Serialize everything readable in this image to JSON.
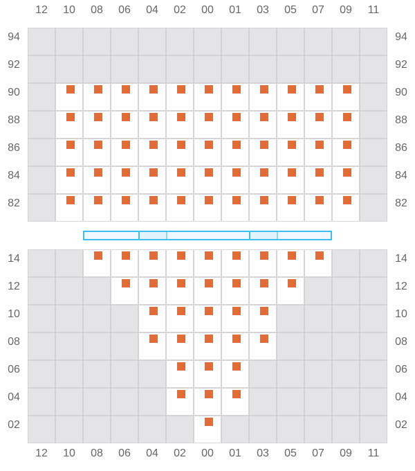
{
  "columns": [
    "12",
    "10",
    "08",
    "06",
    "04",
    "02",
    "00",
    "01",
    "03",
    "05",
    "07",
    "09",
    "11"
  ],
  "colors": {
    "marker": "#e06c37",
    "closed": "#e4e4e7",
    "open": "#ffffff",
    "grid": "#d4d4d6",
    "hatch_bar": "#3dbdf2"
  },
  "upper_section": {
    "rows": [
      {
        "label": "94",
        "open": []
      },
      {
        "label": "92",
        "open": []
      },
      {
        "label": "90",
        "open": [
          "10",
          "08",
          "06",
          "04",
          "02",
          "00",
          "01",
          "03",
          "05",
          "07",
          "09"
        ]
      },
      {
        "label": "88",
        "open": [
          "10",
          "08",
          "06",
          "04",
          "02",
          "00",
          "01",
          "03",
          "05",
          "07",
          "09"
        ]
      },
      {
        "label": "86",
        "open": [
          "10",
          "08",
          "06",
          "04",
          "02",
          "00",
          "01",
          "03",
          "05",
          "07",
          "09"
        ]
      },
      {
        "label": "84",
        "open": [
          "10",
          "08",
          "06",
          "04",
          "02",
          "00",
          "01",
          "03",
          "05",
          "07",
          "09"
        ]
      },
      {
        "label": "82",
        "open": [
          "10",
          "08",
          "06",
          "04",
          "02",
          "00",
          "01",
          "03",
          "05",
          "07",
          "09"
        ]
      }
    ]
  },
  "hatch_covers": [
    {
      "columns": [
        "08",
        "06"
      ],
      "highlight": false
    },
    {
      "columns": [
        "04"
      ],
      "highlight": true
    },
    {
      "columns": [
        "02",
        "00",
        "01"
      ],
      "highlight": false
    },
    {
      "columns": [
        "03"
      ],
      "highlight": true
    },
    {
      "columns": [
        "05",
        "07"
      ],
      "highlight": false
    }
  ],
  "lower_section": {
    "rows": [
      {
        "label": "14",
        "open": [
          "08",
          "06",
          "04",
          "02",
          "00",
          "01",
          "03",
          "05",
          "07"
        ]
      },
      {
        "label": "12",
        "open": [
          "06",
          "04",
          "02",
          "00",
          "01",
          "03",
          "05"
        ]
      },
      {
        "label": "10",
        "open": [
          "04",
          "02",
          "00",
          "01",
          "03"
        ]
      },
      {
        "label": "08",
        "open": [
          "04",
          "02",
          "00",
          "01",
          "03"
        ]
      },
      {
        "label": "06",
        "open": [
          "02",
          "00",
          "01"
        ]
      },
      {
        "label": "04",
        "open": [
          "02",
          "00",
          "01"
        ]
      },
      {
        "label": "02",
        "open": [
          "00"
        ]
      }
    ]
  }
}
